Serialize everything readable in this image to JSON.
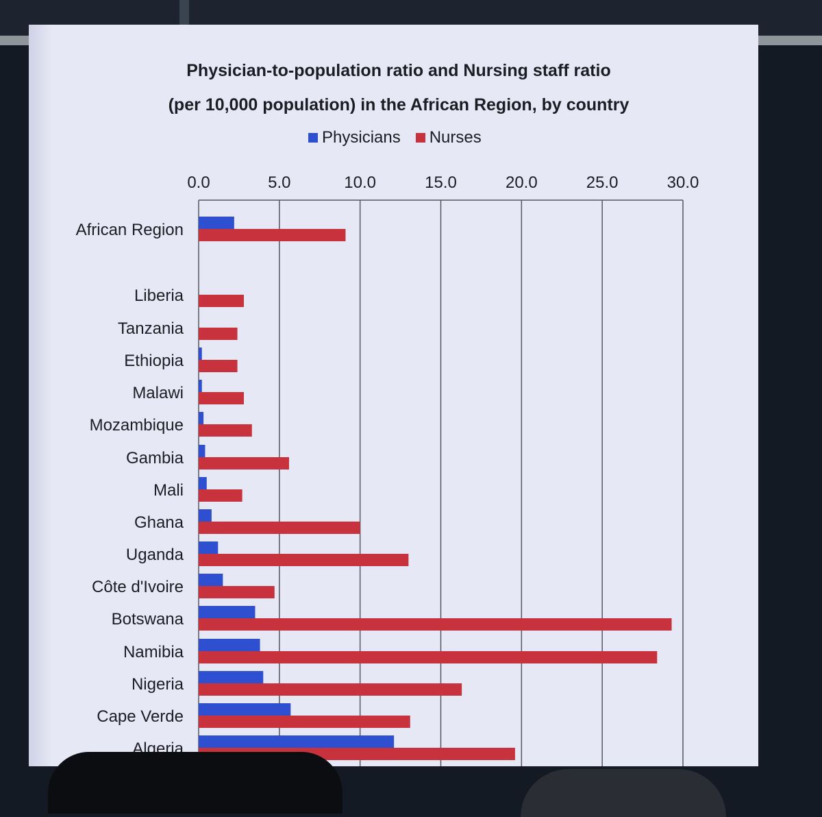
{
  "chart_data": {
    "type": "bar",
    "orientation": "horizontal",
    "title_lines": [
      "Physician-to-population ratio and Nursing staff ratio",
      "(per 10,000 population) in the African Region, by country"
    ],
    "legend_position": "top",
    "categories": [
      "African Region",
      "Liberia",
      "Tanzania",
      "Ethiopia",
      "Malawi",
      "Mozambique",
      "Gambia",
      "Mali",
      "Ghana",
      "Uganda",
      "Côte d'Ivoire",
      "Botswana",
      "Namibia",
      "Nigeria",
      "Cape Verde",
      "Algeria"
    ],
    "series": [
      {
        "name": "Physicians",
        "color": "#2e4fcf",
        "values": [
          2.2,
          0.0,
          0.0,
          0.2,
          0.2,
          0.3,
          0.4,
          0.5,
          0.8,
          1.2,
          1.5,
          3.5,
          3.8,
          4.0,
          5.7,
          12.1
        ]
      },
      {
        "name": "Nurses",
        "color": "#c8323c",
        "values": [
          9.1,
          2.8,
          2.4,
          2.4,
          2.8,
          3.3,
          5.6,
          2.7,
          10.0,
          13.0,
          4.7,
          29.3,
          28.4,
          16.3,
          13.1,
          19.6
        ]
      }
    ],
    "xlim": [
      0,
      30
    ],
    "x_ticks": [
      "0.0",
      "5.0",
      "10.0",
      "15.0",
      "20.0",
      "25.0",
      "30.0"
    ],
    "grid": true,
    "axis_position": "top"
  }
}
